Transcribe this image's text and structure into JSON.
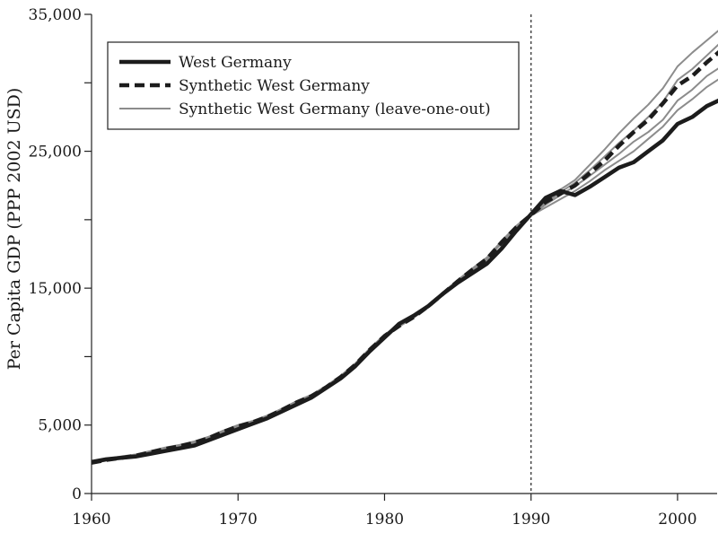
{
  "chart_data": {
    "type": "line",
    "title": "",
    "xlabel": "",
    "ylabel": "Per Capita GDP (PPP 2002 USD)",
    "xlim": [
      1960,
      2003
    ],
    "ylim": [
      0,
      35000
    ],
    "x_ticks": [
      1960,
      1970,
      1980,
      1990,
      2000
    ],
    "x_tick_labels": [
      "1960",
      "1970",
      "1980",
      "1990",
      "2000"
    ],
    "y_ticks": [
      0,
      5000,
      15000,
      25000,
      35000
    ],
    "y_tick_labels": [
      "0",
      "5,000",
      "15,000",
      "25,000",
      "35,000"
    ],
    "treatment_year": 1990,
    "legend": [
      "West Germany",
      "Synthetic West Germany",
      "Synthetic West Germany (leave-one-out)"
    ],
    "legend_position": "top-left",
    "x": [
      1960,
      1961,
      1962,
      1963,
      1964,
      1965,
      1966,
      1967,
      1968,
      1969,
      1970,
      1971,
      1972,
      1973,
      1974,
      1975,
      1976,
      1977,
      1978,
      1979,
      1980,
      1981,
      1982,
      1983,
      1984,
      1985,
      1986,
      1987,
      1988,
      1989,
      1990,
      1991,
      1992,
      1993,
      1994,
      1995,
      1996,
      1997,
      1998,
      1999,
      2000,
      2001,
      2002,
      2003
    ],
    "series": [
      {
        "name": "Synthetic West Germany (leave-one-out)",
        "style": "thin",
        "values": [
          2200,
          2400,
          2550,
          2700,
          2950,
          3200,
          3400,
          3650,
          4000,
          4450,
          4850,
          5150,
          5550,
          6050,
          6600,
          7050,
          7700,
          8450,
          9350,
          10450,
          11450,
          12200,
          12850,
          13650,
          14550,
          15450,
          16300,
          17100,
          18300,
          19400,
          20300,
          20900,
          21500,
          22100,
          22800,
          23600,
          24300,
          25000,
          25900,
          26800,
          28000,
          28800,
          29700,
          30400
        ]
      },
      {
        "name": "Synthetic West Germany (leave-one-out)",
        "style": "thin",
        "values": [
          2250,
          2450,
          2600,
          2750,
          3000,
          3250,
          3450,
          3700,
          4050,
          4500,
          4900,
          5200,
          5600,
          6100,
          6650,
          7100,
          7750,
          8500,
          9400,
          10500,
          11500,
          12250,
          12900,
          13700,
          14600,
          15500,
          16350,
          17150,
          18350,
          19450,
          20350,
          21100,
          21800,
          22450,
          23200,
          24000,
          24800,
          25700,
          26400,
          27300,
          28700,
          29500,
          30500,
          31200
        ]
      },
      {
        "name": "Synthetic West Germany (leave-one-out)",
        "style": "thin",
        "values": [
          2300,
          2500,
          2650,
          2800,
          3050,
          3300,
          3500,
          3750,
          4100,
          4550,
          4950,
          5250,
          5650,
          6150,
          6700,
          7150,
          7800,
          8550,
          9450,
          10550,
          11550,
          12300,
          12950,
          13750,
          14650,
          15550,
          16400,
          17200,
          18400,
          19500,
          20400,
          21200,
          22000,
          22700,
          23600,
          24600,
          25600,
          26500,
          27500,
          28600,
          30200,
          31000,
          32000,
          33000
        ]
      },
      {
        "name": "Synthetic West Germany (leave-one-out)",
        "style": "thin",
        "values": [
          2350,
          2550,
          2700,
          2850,
          3100,
          3350,
          3550,
          3800,
          4150,
          4600,
          5000,
          5300,
          5700,
          6200,
          6750,
          7200,
          7850,
          8600,
          9500,
          10600,
          11600,
          12350,
          13000,
          13800,
          14700,
          15600,
          16450,
          17250,
          18450,
          19550,
          20450,
          21350,
          22200,
          22900,
          24000,
          25100,
          26300,
          27400,
          28400,
          29600,
          31200,
          32200,
          33100,
          34000
        ]
      },
      {
        "name": "Synthetic West Germany",
        "style": "dashed",
        "values": [
          2250,
          2450,
          2600,
          2750,
          3000,
          3250,
          3450,
          3700,
          4050,
          4500,
          4900,
          5200,
          5600,
          6100,
          6650,
          7100,
          7750,
          8500,
          9400,
          10500,
          11500,
          12250,
          12900,
          13700,
          14600,
          15500,
          16350,
          17150,
          18350,
          19450,
          20350,
          21300,
          21900,
          22500,
          23400,
          24300,
          25400,
          26400,
          27300,
          28500,
          29800,
          30500,
          31500,
          32400
        ]
      },
      {
        "name": "West Germany",
        "style": "solid",
        "values": [
          2300,
          2500,
          2600,
          2700,
          2900,
          3100,
          3300,
          3500,
          3900,
          4300,
          4700,
          5100,
          5500,
          6000,
          6500,
          7000,
          7700,
          8400,
          9300,
          10400,
          11400,
          12400,
          13000,
          13700,
          14600,
          15400,
          16100,
          16800,
          17900,
          19200,
          20400,
          21600,
          22100,
          21800,
          22400,
          23100,
          23800,
          24200,
          25000,
          25800,
          27000,
          27500,
          28300,
          28800
        ]
      }
    ]
  }
}
